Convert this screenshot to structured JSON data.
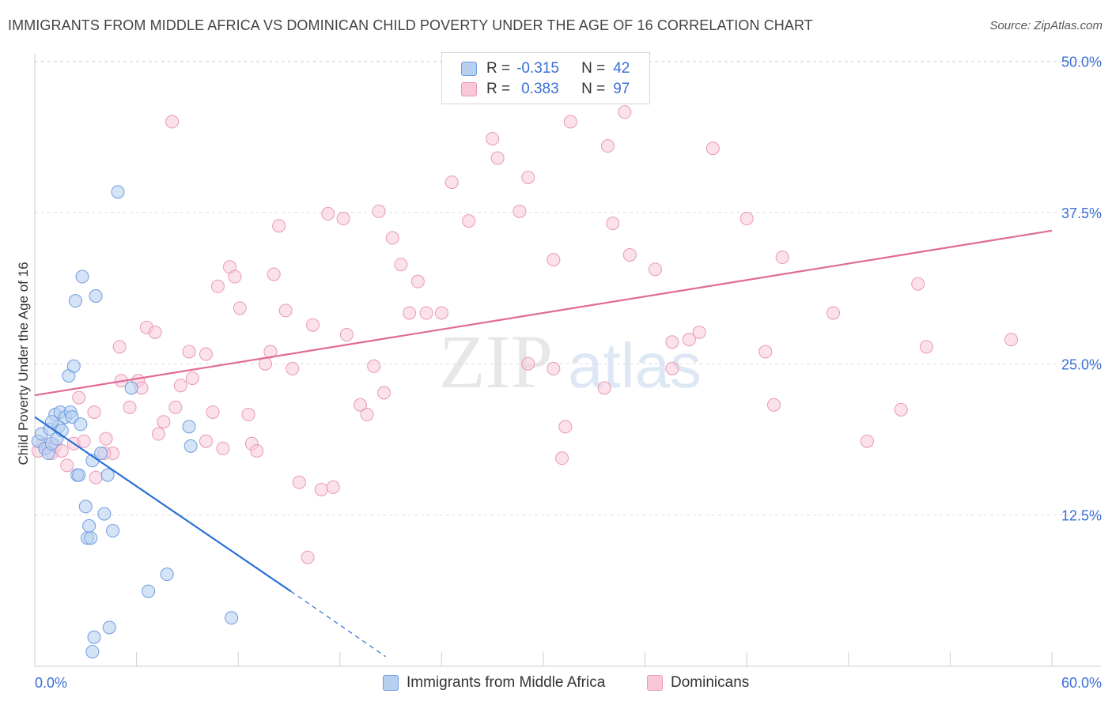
{
  "header": {
    "title": "IMMIGRANTS FROM MIDDLE AFRICA VS DOMINICAN CHILD POVERTY UNDER THE AGE OF 16 CORRELATION CHART",
    "source": "Source: ZipAtlas.com"
  },
  "legend": {
    "rows": [
      {
        "r_label": "R =",
        "r_value": "-0.315",
        "n_label": "N =",
        "n_value": "42"
      },
      {
        "r_label": "R =",
        "r_value": "0.383",
        "n_label": "N =",
        "n_value": "97"
      }
    ]
  },
  "watermark": {
    "zip": "ZIP",
    "atlas": "atlas"
  },
  "colors": {
    "blue_fill": "#b8d0f0",
    "blue_stroke": "#6f9de0",
    "blue_line": "#2a6fd6",
    "pink_fill": "#f8c8d8",
    "pink_stroke": "#e899b4",
    "pink_line": "#e06a98",
    "axis_label": "#3a6fd6",
    "grid": "#dddddd"
  },
  "chart_data": {
    "type": "scatter",
    "title": "IMMIGRANTS FROM MIDDLE AFRICA VS DOMINICAN CHILD POVERTY UNDER THE AGE OF 16 CORRELATION CHART",
    "xlabel": "",
    "ylabel": "Child Poverty Under the Age of 16",
    "xlim": [
      0,
      60
    ],
    "ylim": [
      0,
      52
    ],
    "x_tick_labels": [
      "0.0%",
      "60.0%"
    ],
    "y_ticks": [
      12.5,
      25.0,
      37.5,
      50.0
    ],
    "y_tick_labels": [
      "12.5%",
      "25.0%",
      "37.5%",
      "50.0%"
    ],
    "grid": "horizontal dashed",
    "series": [
      {
        "name": "Immigrants from Middle Africa",
        "color": "#6f9de0",
        "points": [
          [
            0.2,
            18.6
          ],
          [
            0.4,
            19.2
          ],
          [
            0.6,
            18.0
          ],
          [
            0.8,
            17.6
          ],
          [
            0.9,
            19.6
          ],
          [
            1.0,
            18.4
          ],
          [
            1.2,
            20.8
          ],
          [
            1.3,
            18.8
          ],
          [
            1.4,
            19.8
          ],
          [
            1.5,
            21.0
          ],
          [
            1.6,
            19.5
          ],
          [
            1.8,
            20.6
          ],
          [
            2.0,
            24.0
          ],
          [
            2.1,
            21.0
          ],
          [
            2.2,
            20.6
          ],
          [
            2.3,
            24.8
          ],
          [
            2.4,
            30.2
          ],
          [
            2.5,
            15.8
          ],
          [
            2.6,
            15.8
          ],
          [
            2.7,
            20.0
          ],
          [
            2.8,
            32.2
          ],
          [
            3.0,
            13.2
          ],
          [
            3.1,
            10.6
          ],
          [
            3.2,
            11.6
          ],
          [
            3.3,
            10.6
          ],
          [
            3.4,
            17.0
          ],
          [
            3.5,
            2.4
          ],
          [
            3.6,
            30.6
          ],
          [
            3.9,
            17.6
          ],
          [
            4.1,
            12.6
          ],
          [
            4.3,
            15.8
          ],
          [
            4.4,
            3.2
          ],
          [
            4.6,
            11.2
          ],
          [
            4.9,
            39.2
          ],
          [
            5.7,
            23.0
          ],
          [
            6.7,
            6.2
          ],
          [
            7.8,
            7.6
          ],
          [
            9.1,
            19.8
          ],
          [
            9.2,
            18.2
          ],
          [
            11.6,
            4.0
          ],
          [
            3.4,
            1.2
          ],
          [
            1.0,
            20.2
          ]
        ]
      },
      {
        "name": "Dominicans",
        "color": "#e899b4",
        "points": [
          [
            0.2,
            17.8
          ],
          [
            0.5,
            18.4
          ],
          [
            1.0,
            17.6
          ],
          [
            1.2,
            18.2
          ],
          [
            1.6,
            17.8
          ],
          [
            1.9,
            16.6
          ],
          [
            2.3,
            18.4
          ],
          [
            2.6,
            22.2
          ],
          [
            2.9,
            18.6
          ],
          [
            3.5,
            21.0
          ],
          [
            3.6,
            15.6
          ],
          [
            4.2,
            18.8
          ],
          [
            4.6,
            17.6
          ],
          [
            5.0,
            26.4
          ],
          [
            5.1,
            23.6
          ],
          [
            5.6,
            21.4
          ],
          [
            6.1,
            23.6
          ],
          [
            6.3,
            23.0
          ],
          [
            6.6,
            28.0
          ],
          [
            7.1,
            27.6
          ],
          [
            7.3,
            19.2
          ],
          [
            7.6,
            20.2
          ],
          [
            8.1,
            45.0
          ],
          [
            8.3,
            21.4
          ],
          [
            8.6,
            23.2
          ],
          [
            9.1,
            26.0
          ],
          [
            9.3,
            23.8
          ],
          [
            10.1,
            18.6
          ],
          [
            10.1,
            25.8
          ],
          [
            10.5,
            21.0
          ],
          [
            10.8,
            31.4
          ],
          [
            11.1,
            18.0
          ],
          [
            11.5,
            33.0
          ],
          [
            11.8,
            32.2
          ],
          [
            12.1,
            29.6
          ],
          [
            12.6,
            20.8
          ],
          [
            12.8,
            18.4
          ],
          [
            13.1,
            17.8
          ],
          [
            13.6,
            25.0
          ],
          [
            13.9,
            26.0
          ],
          [
            14.1,
            32.4
          ],
          [
            14.4,
            36.4
          ],
          [
            14.8,
            29.4
          ],
          [
            15.2,
            24.6
          ],
          [
            15.6,
            15.2
          ],
          [
            16.1,
            9.0
          ],
          [
            16.4,
            28.2
          ],
          [
            16.9,
            14.6
          ],
          [
            17.3,
            37.4
          ],
          [
            17.6,
            14.8
          ],
          [
            18.2,
            37.0
          ],
          [
            18.4,
            27.4
          ],
          [
            19.2,
            21.6
          ],
          [
            19.6,
            20.8
          ],
          [
            20.0,
            24.8
          ],
          [
            20.3,
            37.6
          ],
          [
            20.6,
            22.6
          ],
          [
            21.1,
            35.4
          ],
          [
            21.6,
            33.2
          ],
          [
            22.1,
            29.2
          ],
          [
            22.6,
            31.8
          ],
          [
            23.1,
            29.2
          ],
          [
            24.0,
            29.2
          ],
          [
            24.6,
            40.0
          ],
          [
            25.6,
            36.8
          ],
          [
            27.0,
            43.6
          ],
          [
            27.3,
            42.0
          ],
          [
            28.6,
            37.6
          ],
          [
            29.1,
            40.4
          ],
          [
            29.1,
            25.0
          ],
          [
            30.6,
            33.6
          ],
          [
            30.6,
            24.6
          ],
          [
            31.1,
            17.2
          ],
          [
            31.3,
            19.8
          ],
          [
            31.6,
            45.0
          ],
          [
            33.6,
            23.0
          ],
          [
            33.8,
            43.0
          ],
          [
            34.1,
            36.6
          ],
          [
            34.8,
            45.8
          ],
          [
            35.1,
            34.0
          ],
          [
            36.6,
            32.8
          ],
          [
            37.6,
            26.8
          ],
          [
            37.6,
            24.6
          ],
          [
            38.6,
            27.0
          ],
          [
            39.2,
            27.6
          ],
          [
            40.0,
            42.8
          ],
          [
            42.0,
            37.0
          ],
          [
            43.1,
            26.0
          ],
          [
            43.6,
            21.6
          ],
          [
            44.1,
            33.8
          ],
          [
            47.1,
            29.2
          ],
          [
            49.1,
            18.6
          ],
          [
            51.1,
            21.2
          ],
          [
            52.1,
            31.6
          ],
          [
            52.6,
            26.4
          ],
          [
            57.6,
            27.0
          ],
          [
            4.1,
            17.6
          ]
        ]
      }
    ],
    "trend_lines": [
      {
        "series": "Immigrants from Middle Africa",
        "x_start": 0,
        "y_start": 20.6,
        "x_solid_end": 15.1,
        "y_solid_end": 6.2,
        "x_dashed_end": 20.7,
        "y_dashed_end": 0.8
      },
      {
        "series": "Dominicans",
        "x_start": 0,
        "y_start": 22.4,
        "x_end": 60,
        "y_end": 36.0
      }
    ]
  },
  "bottom_legend": [
    {
      "label": "Immigrants from Middle Africa"
    },
    {
      "label": "Dominicans"
    }
  ]
}
